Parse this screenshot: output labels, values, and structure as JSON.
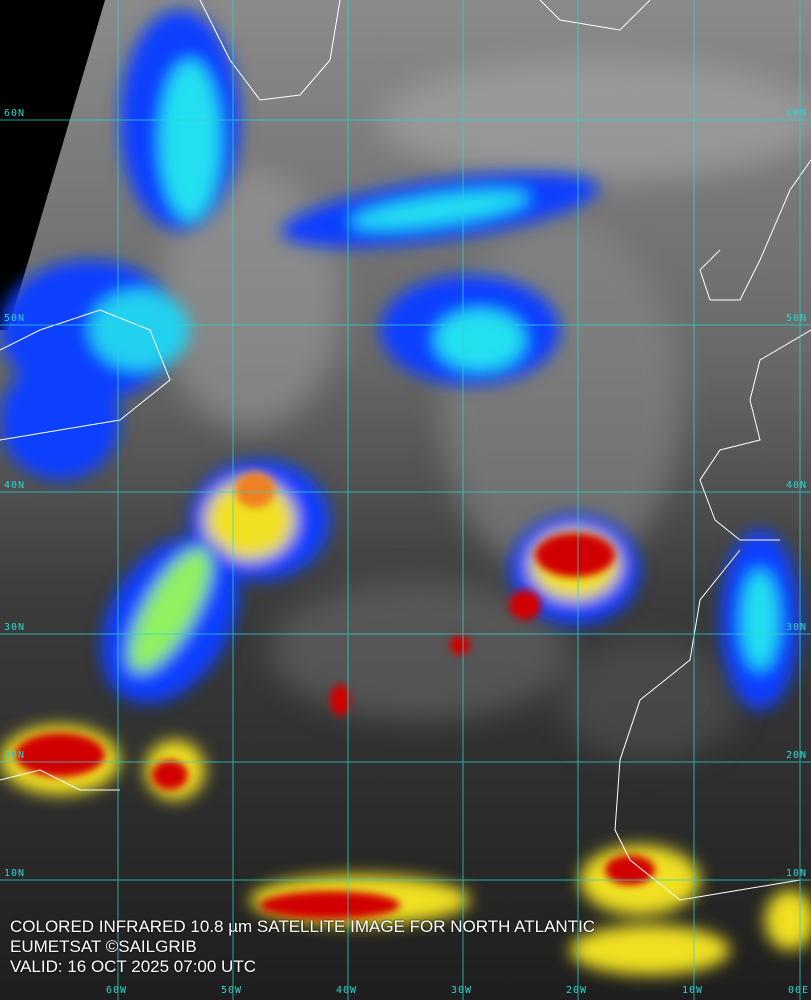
{
  "caption": {
    "title": "COLORED INFRARED 10.8 µm SATELLITE IMAGE FOR NORTH ATLANTIC",
    "credit": "EUMETSAT ©SAILGRIB",
    "valid": "VALID:  16 OCT 2025 07:00 UTC"
  },
  "grid": {
    "latitudes": [
      "60N",
      "50N",
      "40N",
      "30N",
      "20N",
      "10N"
    ],
    "longitudes": [
      "60W",
      "50W",
      "40W",
      "30W",
      "20W",
      "10W",
      "00E"
    ],
    "color": "#29d6d0"
  },
  "colors": {
    "cold_tops": "#d00000",
    "high_cloud": "#f0e020",
    "mid_cloud": "#20e0f0",
    "low_cloud": "#1040ff",
    "coastline": "#ffffff"
  }
}
